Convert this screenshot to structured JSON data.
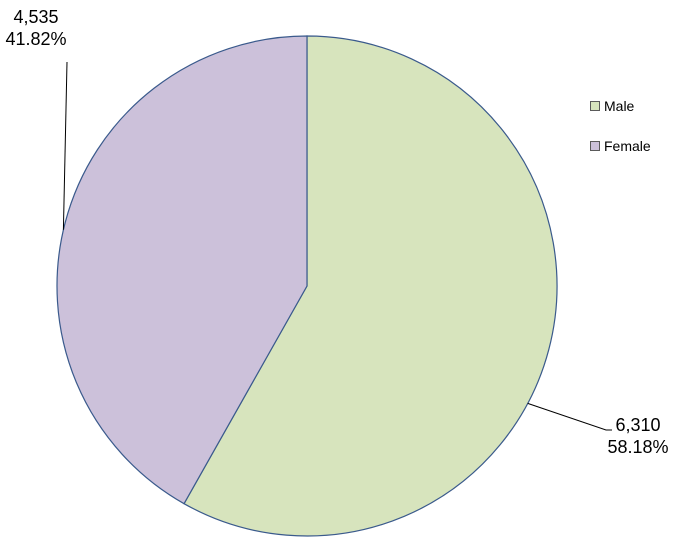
{
  "chart_data": {
    "type": "pie",
    "categories": [
      "Male",
      "Female"
    ],
    "values": [
      6310,
      4535
    ],
    "percentages": [
      "58.18%",
      "41.82%"
    ],
    "value_labels": [
      "6,310",
      "4,535"
    ],
    "colors": [
      "#d7e4bd",
      "#ccc1da"
    ],
    "edge_color": "#3a5a8c",
    "start_angle_deg": 0,
    "direction": "clockwise",
    "legend": {
      "position": "right"
    }
  }
}
